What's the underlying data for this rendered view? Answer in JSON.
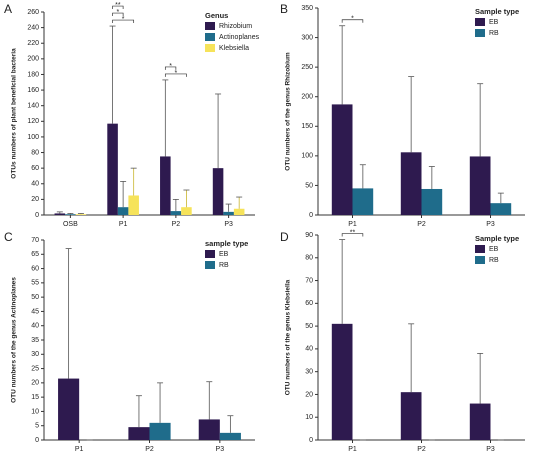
{
  "chart_data": [
    {
      "type": "bar",
      "label": "A",
      "ylabel": "OTUs numbers of plant beneficial bacteria",
      "legend_title": "Genus",
      "categories": [
        "OSB",
        "P1",
        "P2",
        "P3"
      ],
      "series": [
        {
          "name": "Rhizobium",
          "color": "#2e1a4f",
          "values": [
            2,
            117,
            75,
            60
          ],
          "errors": [
            2,
            125,
            98,
            95
          ]
        },
        {
          "name": "Actinoplanes",
          "color": "#1f6c8b",
          "values": [
            1,
            10,
            5,
            4
          ],
          "errors": [
            1,
            33,
            15,
            10
          ]
        },
        {
          "name": "Klebsiella",
          "color": "#f6e35a",
          "values": [
            1,
            25,
            10,
            8
          ],
          "errors": [
            1,
            35,
            22,
            15
          ]
        }
      ],
      "ylim": [
        0,
        260
      ],
      "yticks": [
        0,
        20,
        40,
        60,
        80,
        100,
        120,
        140,
        160,
        180,
        200,
        220,
        240,
        260
      ],
      "annotations": [
        {
          "text": "*",
          "category": "P1",
          "pair": [
            "Rhizobium",
            "Klebsiella"
          ]
        },
        {
          "text": "*",
          "category": "P1",
          "pair": [
            "Rhizobium",
            "Actinoplanes"
          ]
        },
        {
          "text": "**",
          "category": "P1",
          "pair": [
            "Rhizobium",
            "Actinoplanes"
          ]
        },
        {
          "text": "*",
          "category": "P2",
          "pair": [
            "Rhizobium",
            "Klebsiella"
          ]
        },
        {
          "text": "*",
          "category": "P2",
          "pair": [
            "Rhizobium",
            "Actinoplanes"
          ]
        }
      ]
    },
    {
      "type": "bar",
      "label": "B",
      "ylabel": "OTU numbers of the genus Rhizobium",
      "legend_title": "Sample type",
      "categories": [
        "P1",
        "P2",
        "P3"
      ],
      "series": [
        {
          "name": "EB",
          "color": "#2e1a4f",
          "values": [
            187,
            106,
            99
          ],
          "errors": [
            133,
            128,
            123
          ]
        },
        {
          "name": "RB",
          "color": "#1f6c8b",
          "values": [
            45,
            44,
            20
          ],
          "errors": [
            40,
            38,
            17
          ]
        }
      ],
      "ylim": [
        0,
        350
      ],
      "yticks": [
        0,
        50,
        100,
        150,
        200,
        250,
        300,
        350
      ],
      "annotations": [
        {
          "text": "*",
          "category": "P1",
          "pair": [
            "EB",
            "RB"
          ]
        }
      ]
    },
    {
      "type": "bar",
      "label": "C",
      "ylabel": "OTU numbers of the genus Actinoplanes",
      "legend_title": "sample type",
      "categories": [
        "P1",
        "P2",
        "P3"
      ],
      "series": [
        {
          "name": "EB",
          "color": "#2e1a4f",
          "values": [
            21.5,
            4.5,
            7.2
          ],
          "errors": [
            45.5,
            11,
            13.2
          ]
        },
        {
          "name": "RB",
          "color": "#1f6c8b",
          "values": [
            0,
            6,
            2.5
          ],
          "errors": [
            0,
            14,
            6
          ]
        }
      ],
      "ylim": [
        0,
        70
      ],
      "yticks": [
        0,
        5,
        10,
        15,
        20,
        25,
        30,
        35,
        40,
        45,
        50,
        55,
        60,
        65,
        70
      ],
      "annotations": []
    },
    {
      "type": "bar",
      "label": "D",
      "ylabel": "OTU numbers of the genus Klebsiella",
      "legend_title": "Sample type",
      "categories": [
        "P1",
        "P2",
        "P3"
      ],
      "series": [
        {
          "name": "EB",
          "color": "#2e1a4f",
          "values": [
            51,
            21,
            16
          ],
          "errors": [
            37,
            30,
            22
          ]
        },
        {
          "name": "RB",
          "color": "#1f6c8b",
          "values": [
            0,
            0,
            0
          ],
          "errors": [
            0,
            0,
            0
          ]
        }
      ],
      "ylim": [
        0,
        90
      ],
      "yticks": [
        0,
        10,
        20,
        30,
        40,
        50,
        60,
        70,
        80,
        90
      ],
      "annotations": [
        {
          "text": "**",
          "category": "P1",
          "pair": [
            "EB",
            "RB"
          ]
        }
      ]
    }
  ]
}
